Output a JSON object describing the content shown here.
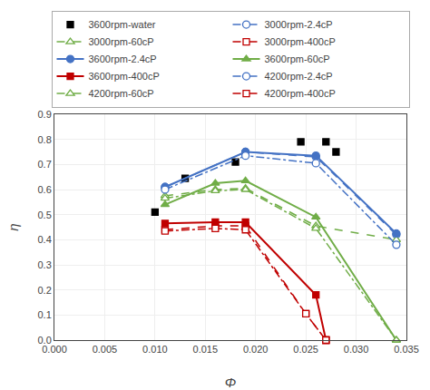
{
  "chart_data": {
    "type": "line",
    "xlabel": "Φ",
    "ylabel": "η",
    "xlim": [
      0,
      0.035
    ],
    "ylim": [
      0,
      0.9
    ],
    "xticks": [
      {
        "value": 0,
        "label": "0.000"
      },
      0.005,
      {
        "value": 0.01,
        "label": "0.010"
      },
      0.015,
      {
        "value": 0.02,
        "label": "0.020"
      },
      0.025,
      {
        "value": 0.03,
        "label": "0.030"
      },
      0.035
    ],
    "yticks": [
      {
        "value": 0,
        "label": "0.0"
      },
      0.1,
      0.2,
      0.3,
      0.4,
      0.5,
      0.6,
      0.7,
      0.8,
      0.9
    ],
    "grid": true,
    "legend": "top",
    "series": [
      {
        "name": "3600rpm-water",
        "color": "#000000",
        "marker": "square",
        "line_style": "none",
        "x": [
          0.01,
          0.013,
          0.018,
          0.0245,
          0.027,
          0.028
        ],
        "values": [
          0.51,
          0.645,
          0.71,
          0.79,
          0.79,
          0.75
        ]
      },
      {
        "name": "3000rpm-2.4cP",
        "color": "#4472C4",
        "marker": "circle-open",
        "line_style": "dash",
        "x": [
          0.011,
          0.019,
          0.026,
          0.034
        ],
        "values": [
          0.61,
          0.75,
          0.73,
          0.42
        ]
      },
      {
        "name": "3000rpm-60cP",
        "color": "#70AD47",
        "marker": "triangle-up-open",
        "line_style": "dash",
        "x": [
          0.011,
          0.016,
          0.019,
          0.026,
          0.034
        ],
        "values": [
          0.575,
          0.6,
          0.605,
          0.455,
          0.4
        ]
      },
      {
        "name": "3000rpm-400cP",
        "color": "#C00000",
        "marker": "square-open",
        "line_style": "dash",
        "x": [
          0.011,
          0.016,
          0.019,
          0.025,
          0.027
        ],
        "values": [
          0.44,
          0.455,
          0.455,
          0.105,
          0.0
        ]
      },
      {
        "name": "3600rpm-2.4cP",
        "color": "#4472C4",
        "marker": "circle",
        "line_style": "solid",
        "x": [
          0.011,
          0.019,
          0.026,
          0.034
        ],
        "values": [
          0.61,
          0.75,
          0.735,
          0.425
        ]
      },
      {
        "name": "3600rpm-60cP",
        "color": "#70AD47",
        "marker": "triangle-up",
        "line_style": "solid",
        "x": [
          0.011,
          0.016,
          0.019,
          0.026,
          0.034
        ],
        "values": [
          0.54,
          0.625,
          0.635,
          0.49,
          0.0
        ]
      },
      {
        "name": "3600rpm-400cP",
        "color": "#C00000",
        "marker": "square",
        "line_style": "solid",
        "x": [
          0.011,
          0.016,
          0.019,
          0.026,
          0.027
        ],
        "values": [
          0.465,
          0.47,
          0.47,
          0.18,
          0.0
        ]
      },
      {
        "name": "4200rpm-2.4cP",
        "color": "#4472C4",
        "marker": "circle-open",
        "line_style": "dashdot",
        "x": [
          0.011,
          0.019,
          0.026,
          0.034
        ],
        "values": [
          0.6,
          0.735,
          0.705,
          0.38
        ]
      },
      {
        "name": "4200rpm-60cP",
        "color": "#70AD47",
        "marker": "triangle-up-open",
        "line_style": "dashdot",
        "x": [
          0.011,
          0.016,
          0.019,
          0.026,
          0.034
        ],
        "values": [
          0.565,
          0.595,
          0.6,
          0.445,
          0.0
        ]
      },
      {
        "name": "4200rpm-400cP",
        "color": "#C00000",
        "marker": "square-open",
        "line_style": "dashdot",
        "x": [
          0.011,
          0.016,
          0.019,
          0.025,
          0.027
        ],
        "values": [
          0.435,
          0.445,
          0.44,
          0.105,
          0.0
        ]
      }
    ]
  }
}
